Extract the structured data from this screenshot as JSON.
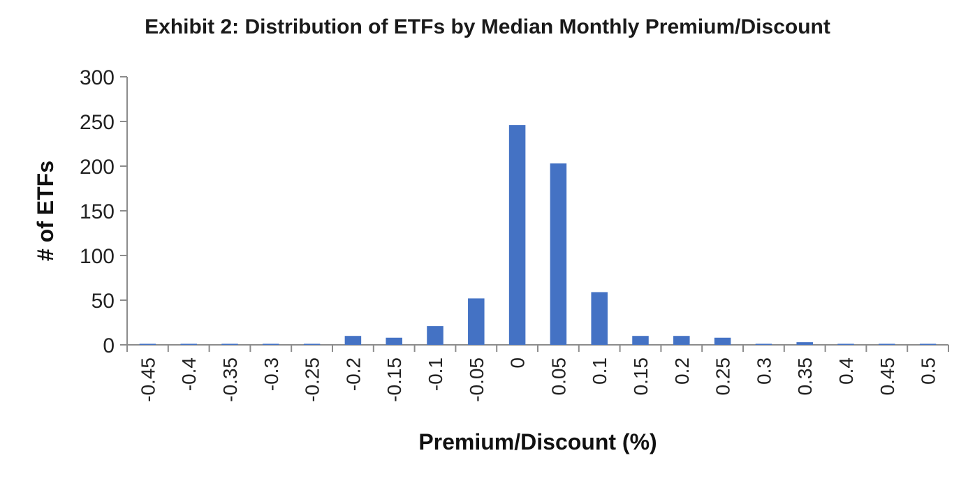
{
  "chart_data": {
    "type": "bar",
    "title": "Exhibit 2: Distribution  of ETFs by Median Monthly  Premium/Discount",
    "xlabel": "Premium/Discount  (%)",
    "ylabel": "# of ETFs",
    "ylim": [
      0,
      300
    ],
    "yticks": [
      "0",
      "50",
      "100",
      "150",
      "200",
      "250",
      "300"
    ],
    "categories": [
      "-0.45",
      "-0.4",
      "-0.35",
      "-0.3",
      "-0.25",
      "-0.2",
      "-0.15",
      "-0.1",
      "-0.05",
      "0",
      "0.05",
      "0.1",
      "0.15",
      "0.2",
      "0.25",
      "0.3",
      "0.35",
      "0.4",
      "0.45",
      "0.5"
    ],
    "values": [
      0,
      0,
      0,
      0,
      0,
      10,
      8,
      21,
      52,
      246,
      203,
      59,
      10,
      10,
      8,
      0,
      3,
      0,
      0,
      0
    ],
    "bar_color": "#4472C4",
    "grid": false,
    "legend": "none"
  }
}
